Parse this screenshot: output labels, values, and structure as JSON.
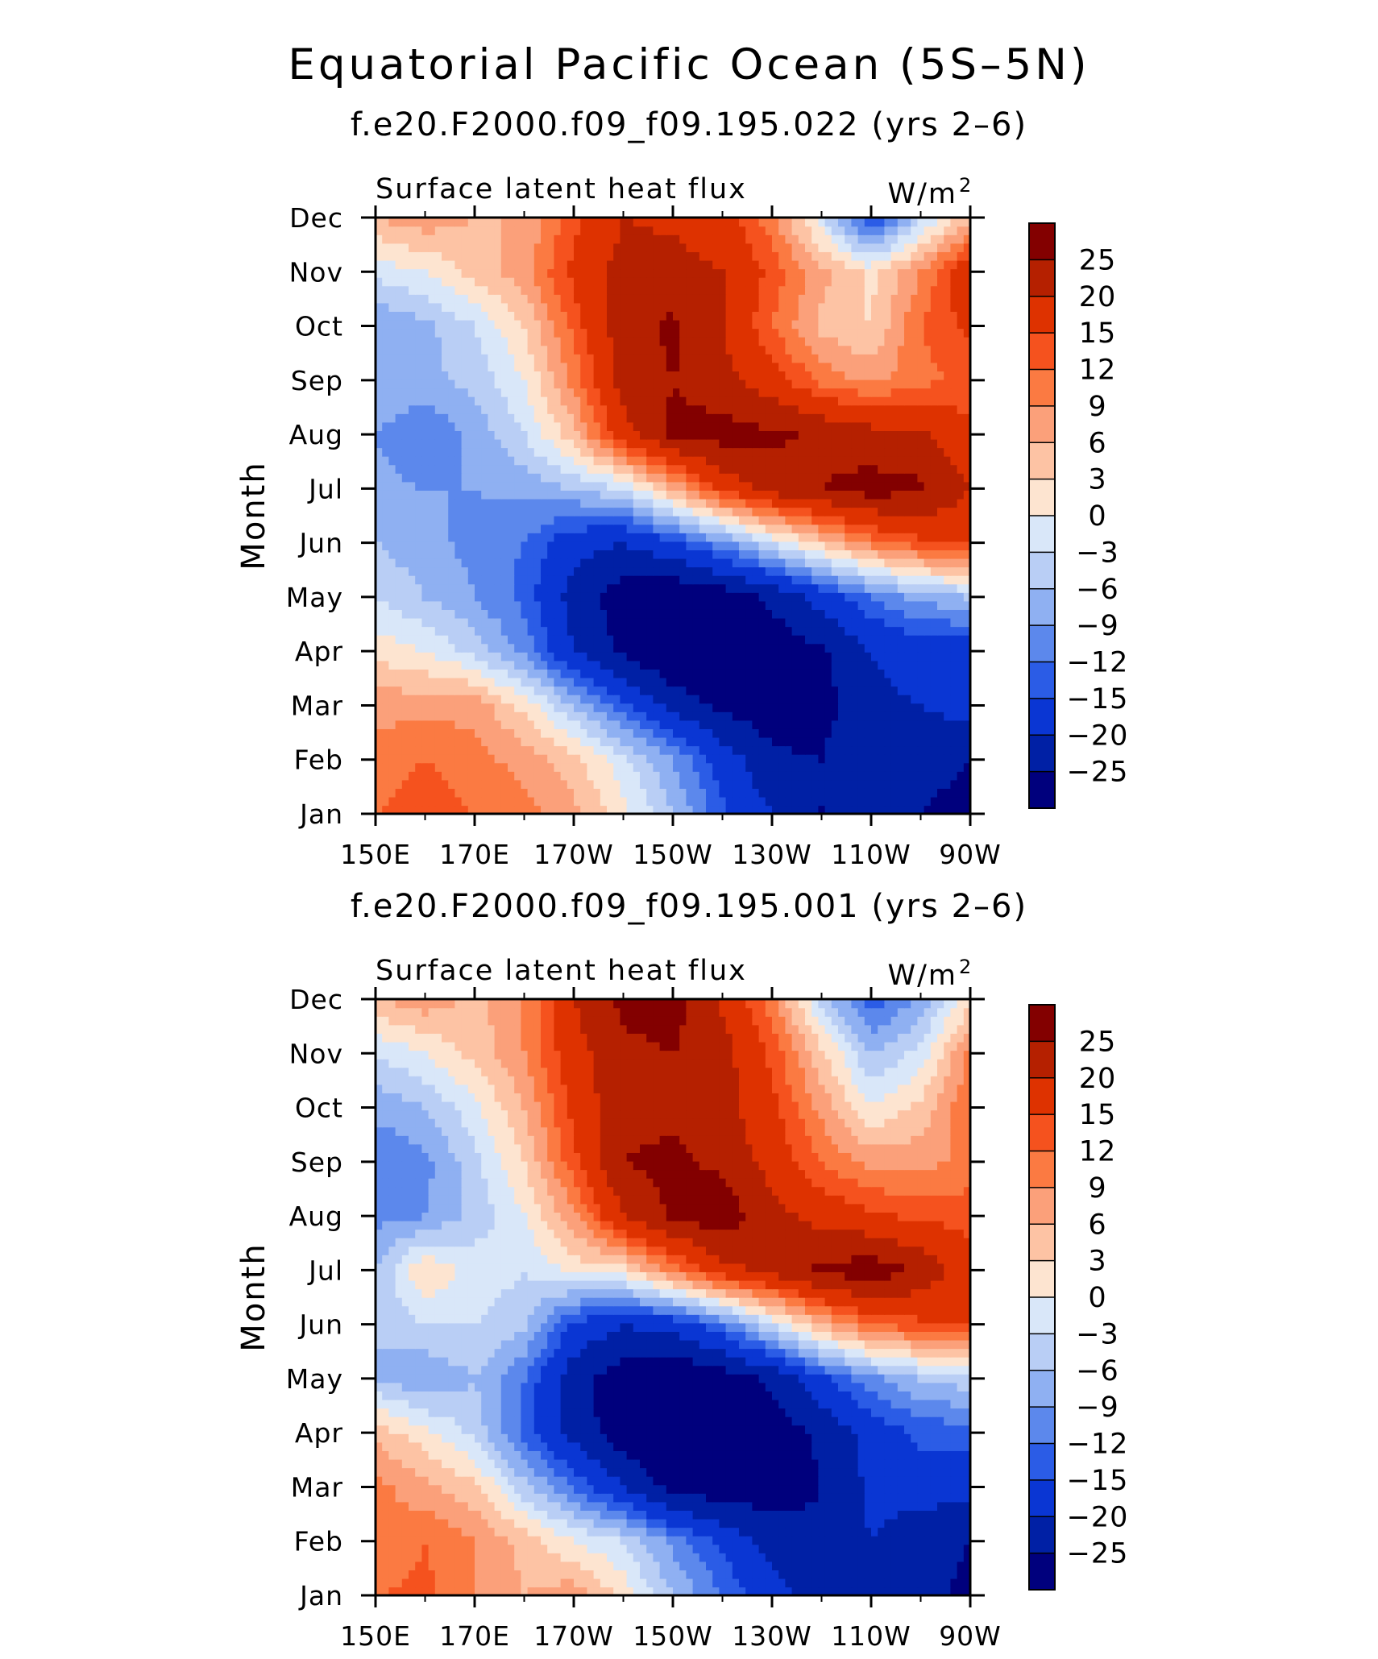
{
  "figure": {
    "title": "Equatorial Pacific Ocean (5S–5N)"
  },
  "colorbar": {
    "levels": [
      -25,
      -20,
      -15,
      -12,
      -9,
      -6,
      -3,
      0,
      3,
      6,
      9,
      12,
      15,
      20,
      25
    ],
    "labels": [
      "25",
      "20",
      "15",
      "12",
      "9",
      "6",
      "3",
      "0",
      "−3",
      "−6",
      "−9",
      "−12",
      "−15",
      "−20",
      "−25"
    ],
    "colors_top_to_bottom": [
      "#830000",
      "#b52000",
      "#de3200",
      "#f5521e",
      "#fb7a42",
      "#fba07a",
      "#fdc3a4",
      "#fde4d0",
      "#d9e7f9",
      "#b9cef5",
      "#8fb0f2",
      "#5c88ec",
      "#2b5ce6",
      "#0a36d3",
      "#0020a5",
      "#00007d"
    ]
  },
  "chart_data": [
    {
      "type": "heatmap",
      "title": "f.e20.F2000.f09_f09.195.022 (yrs 2–6)",
      "variable_label": "Surface latent heat flux",
      "units_label": "W/m",
      "units_superscript": "2",
      "xlabel": "",
      "ylabel": "Month",
      "x_ticks": [
        "150E",
        "170E",
        "170W",
        "150W",
        "130W",
        "110W",
        "90W"
      ],
      "x_tick_values": [
        150,
        170,
        190,
        210,
        230,
        250,
        270
      ],
      "y_ticks": [
        "Jan",
        "Feb",
        "Mar",
        "Apr",
        "May",
        "Jun",
        "Jul",
        "Aug",
        "Sep",
        "Oct",
        "Nov",
        "Dec"
      ],
      "x": [
        150,
        160,
        170,
        180,
        190,
        200,
        210,
        220,
        230,
        240,
        250,
        260,
        270
      ],
      "z": [
        [
          12,
          14,
          12,
          10,
          7,
          1,
          -6,
          -14,
          -20,
          -25,
          -22,
          -25,
          -27
        ],
        [
          10,
          12,
          10,
          8,
          4,
          -2,
          -9,
          -17,
          -24,
          -25,
          -20,
          -23,
          -25
        ],
        [
          8,
          8,
          8,
          2,
          -6,
          -14,
          -22,
          -26,
          -28,
          -27,
          -21,
          -20,
          -18
        ],
        [
          2,
          0,
          -4,
          -10,
          -20,
          -26,
          -30,
          -30,
          -28,
          -26,
          -20,
          -18,
          -18
        ],
        [
          -3,
          -6,
          -9,
          -13,
          -22,
          -28,
          -30,
          -28,
          -24,
          -18,
          -12,
          -8,
          -6
        ],
        [
          -6,
          -8,
          -10,
          -12,
          -18,
          -20,
          -16,
          -10,
          -3,
          4,
          10,
          14,
          16
        ],
        [
          -8,
          -9,
          -9,
          -8,
          -6,
          -3,
          6,
          16,
          22,
          25,
          27,
          26,
          20
        ],
        [
          -9,
          -12,
          -8,
          -3,
          5,
          18,
          26,
          27,
          26,
          24,
          22,
          21,
          16
        ],
        [
          -6,
          -7,
          -5,
          0,
          10,
          22,
          25,
          22,
          17,
          11,
          8,
          11,
          13
        ],
        [
          -9,
          -7,
          -3,
          3,
          13,
          23,
          26,
          20,
          12,
          5,
          3,
          12,
          16
        ],
        [
          -2,
          0,
          4,
          8,
          16,
          22,
          22,
          20,
          14,
          7,
          2,
          9,
          19
        ],
        [
          6,
          8,
          6,
          6,
          14,
          20,
          19,
          17,
          10,
          -2,
          -16,
          -4,
          5
        ]
      ]
    },
    {
      "type": "heatmap",
      "title": "f.e20.F2000.f09_f09.195.001 (yrs 2–6)",
      "variable_label": "Surface latent heat flux",
      "units_label": "W/m",
      "units_superscript": "2",
      "xlabel": "",
      "ylabel": "Month",
      "x_ticks": [
        "150E",
        "170E",
        "170W",
        "150W",
        "130W",
        "110W",
        "90W"
      ],
      "x_tick_values": [
        150,
        170,
        190,
        210,
        230,
        250,
        270
      ],
      "y_ticks": [
        "Jan",
        "Feb",
        "Mar",
        "Apr",
        "May",
        "Jun",
        "Jul",
        "Aug",
        "Sep",
        "Oct",
        "Nov",
        "Dec"
      ],
      "x": [
        150,
        160,
        170,
        180,
        190,
        200,
        210,
        220,
        230,
        240,
        250,
        260,
        270
      ],
      "z": [
        [
          12,
          13,
          9,
          6,
          8,
          2,
          -6,
          -12,
          -18,
          -22,
          -22,
          -24,
          -26
        ],
        [
          9,
          12,
          9,
          5,
          0,
          -3,
          -10,
          -16,
          -22,
          -24,
          -20,
          -23,
          -25
        ],
        [
          10,
          7,
          4,
          -5,
          -12,
          -20,
          -27,
          -28,
          -28,
          -25,
          -19,
          -18,
          -18
        ],
        [
          5,
          1,
          -4,
          -13,
          -22,
          -28,
          -30,
          -30,
          -28,
          -24,
          -18,
          -14,
          -14
        ],
        [
          -6,
          -9,
          -6,
          -12,
          -23,
          -28,
          -30,
          -28,
          -24,
          -16,
          -10,
          -6,
          -4
        ],
        [
          -6,
          -3,
          -3,
          -5,
          -16,
          -20,
          -18,
          -12,
          -3,
          6,
          12,
          14,
          16
        ],
        [
          -6,
          3,
          -1,
          -3,
          1,
          2,
          10,
          18,
          22,
          26,
          28,
          24,
          16
        ],
        [
          -10,
          -9,
          -5,
          0,
          8,
          20,
          26,
          28,
          22,
          18,
          16,
          14,
          14
        ],
        [
          -12,
          -10,
          -4,
          3,
          14,
          25,
          26,
          24,
          18,
          12,
          8,
          8,
          10
        ],
        [
          -8,
          -6,
          -1,
          6,
          16,
          24,
          24,
          22,
          16,
          8,
          0,
          4,
          12
        ],
        [
          -3,
          0,
          4,
          9,
          18,
          24,
          25,
          22,
          14,
          4,
          -6,
          -2,
          10
        ],
        [
          6,
          8,
          5,
          9,
          20,
          26,
          27,
          19,
          10,
          -4,
          -14,
          -8,
          2
        ]
      ]
    }
  ]
}
